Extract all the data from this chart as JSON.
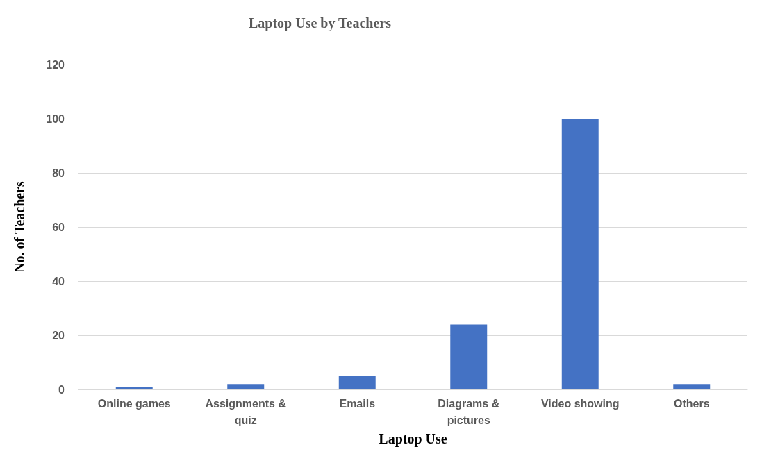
{
  "chart_data": {
    "type": "bar",
    "title": "Laptop Use by Teachers",
    "xlabel": "Laptop Use",
    "ylabel": "No. of Teachers",
    "categories": [
      "Online games",
      "Assignments & quiz",
      "Emails",
      "Diagrams & pictures",
      "Video showing",
      "Others"
    ],
    "values": [
      1,
      2,
      5,
      24,
      100,
      2
    ],
    "color": "#4472c4",
    "ylim": [
      0,
      120
    ],
    "yticks": [
      0,
      20,
      40,
      60,
      80,
      100,
      120
    ],
    "grid": "y"
  }
}
